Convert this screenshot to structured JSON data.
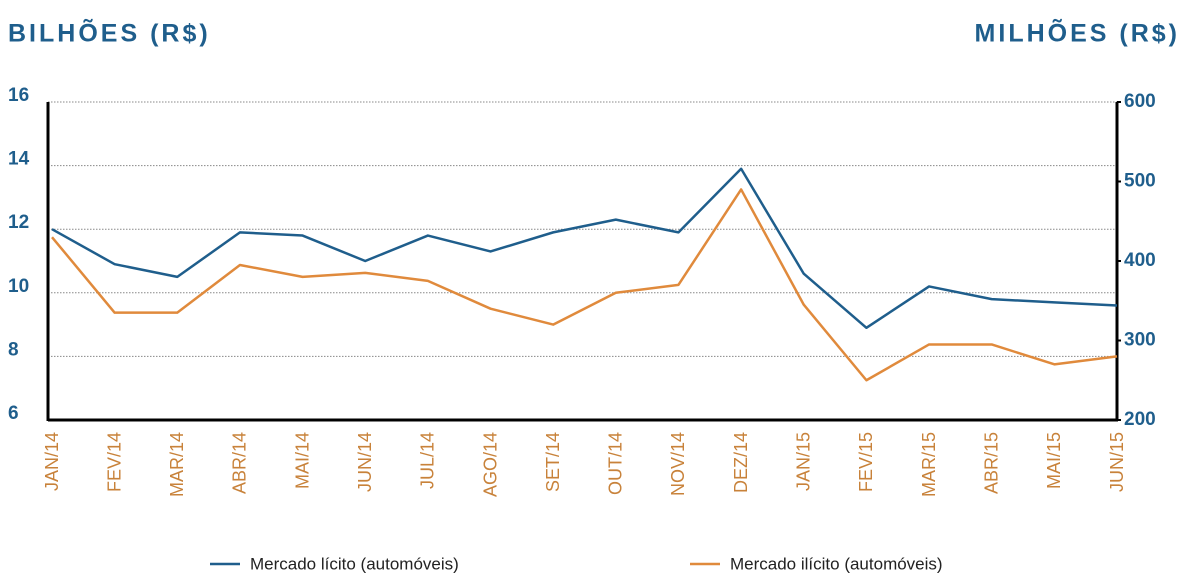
{
  "chart_data": {
    "type": "line",
    "y_title": "BILHÕES (R$)",
    "y2_title": "MILHÕES (R$)",
    "categories": [
      "JAN/14",
      "FEV/14",
      "MAR/14",
      "ABR/14",
      "MAI/14",
      "JUN/14",
      "JUL/14",
      "AGO/14",
      "SET/14",
      "OUT/14",
      "NOV/14",
      "DEZ/14",
      "JAN/15",
      "FEV/15",
      "MAR/15",
      "ABR/15",
      "MAI/15",
      "JUN/15"
    ],
    "series": [
      {
        "name": "Mercado lícito (automóveis)",
        "color": "#1f5e8c",
        "axis": "y",
        "values": [
          12.0,
          10.9,
          10.5,
          11.9,
          11.8,
          11.0,
          11.8,
          11.3,
          11.9,
          12.3,
          11.9,
          13.9,
          10.6,
          8.9,
          10.2,
          9.8,
          9.7,
          9.6
        ]
      },
      {
        "name": "Mercado ilícito (automóveis)",
        "color": "#e08a3c",
        "axis": "y2",
        "values": [
          430,
          335,
          335,
          395,
          380,
          385,
          375,
          340,
          320,
          360,
          370,
          490,
          345,
          250,
          295,
          295,
          270,
          280
        ]
      }
    ],
    "ylim": [
      6,
      16
    ],
    "yticks": [
      6,
      8,
      10,
      12,
      14,
      16
    ],
    "y2lim": [
      200,
      600
    ],
    "y2ticks": [
      200,
      300,
      400,
      500,
      600
    ],
    "grid": true
  }
}
